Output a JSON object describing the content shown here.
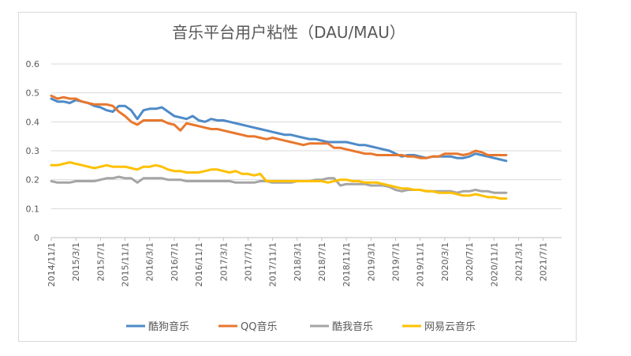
{
  "chart_data": {
    "type": "line",
    "title": "音乐平台用户粘性（DAU/MAU）",
    "xlabel": "",
    "ylabel": "",
    "ylim": [
      0,
      0.6
    ],
    "yticks": [
      "0",
      "0.1",
      "0.2",
      "0.3",
      "0.4",
      "0.5",
      "0.6"
    ],
    "x_tick_labels": [
      "2014/11/1",
      "2015/3/1",
      "2015/7/1",
      "2015/11/1",
      "2016/3/1",
      "2016/7/1",
      "2016/11/1",
      "2017/3/1",
      "2017/7/1",
      "2017/11/1",
      "2018/3/1",
      "2018/7/1",
      "2018/11/1",
      "2019/3/1",
      "2019/7/1",
      "2019/11/1",
      "2020/3/1",
      "2020/7/1",
      "2020/11/1",
      "2021/3/1",
      "2021/7/1"
    ],
    "x_months": 83,
    "series": [
      {
        "name": "酷狗音乐",
        "color": "#4e8ac8",
        "points": [
          [
            0,
            0.48
          ],
          [
            1,
            0.47
          ],
          [
            2,
            0.47
          ],
          [
            3,
            0.465
          ],
          [
            4,
            0.475
          ],
          [
            5,
            0.47
          ],
          [
            6,
            0.465
          ],
          [
            7,
            0.455
          ],
          [
            8,
            0.45
          ],
          [
            9,
            0.44
          ],
          [
            10,
            0.435
          ],
          [
            11,
            0.455
          ],
          [
            12,
            0.455
          ],
          [
            13,
            0.44
          ],
          [
            14,
            0.41
          ],
          [
            15,
            0.44
          ],
          [
            16,
            0.445
          ],
          [
            17,
            0.445
          ],
          [
            18,
            0.45
          ],
          [
            19,
            0.435
          ],
          [
            20,
            0.42
          ],
          [
            21,
            0.415
          ],
          [
            22,
            0.41
          ],
          [
            23,
            0.42
          ],
          [
            24,
            0.405
          ],
          [
            25,
            0.4
          ],
          [
            26,
            0.41
          ],
          [
            27,
            0.405
          ],
          [
            28,
            0.405
          ],
          [
            29,
            0.4
          ],
          [
            30,
            0.395
          ],
          [
            31,
            0.39
          ],
          [
            32,
            0.385
          ],
          [
            33,
            0.38
          ],
          [
            34,
            0.375
          ],
          [
            35,
            0.37
          ],
          [
            36,
            0.365
          ],
          [
            37,
            0.36
          ],
          [
            38,
            0.355
          ],
          [
            39,
            0.355
          ],
          [
            40,
            0.35
          ],
          [
            41,
            0.345
          ],
          [
            42,
            0.34
          ],
          [
            43,
            0.34
          ],
          [
            44,
            0.335
          ],
          [
            45,
            0.33
          ],
          [
            46,
            0.33
          ],
          [
            47,
            0.33
          ],
          [
            48,
            0.33
          ],
          [
            49,
            0.325
          ],
          [
            50,
            0.32
          ],
          [
            51,
            0.32
          ],
          [
            52,
            0.315
          ],
          [
            53,
            0.31
          ],
          [
            54,
            0.305
          ],
          [
            55,
            0.3
          ],
          [
            56,
            0.29
          ],
          [
            57,
            0.28
          ],
          [
            58,
            0.285
          ],
          [
            59,
            0.285
          ],
          [
            60,
            0.28
          ],
          [
            61,
            0.275
          ],
          [
            62,
            0.28
          ],
          [
            63,
            0.28
          ],
          [
            64,
            0.28
          ],
          [
            65,
            0.28
          ],
          [
            66,
            0.275
          ],
          [
            67,
            0.275
          ],
          [
            68,
            0.28
          ],
          [
            69,
            0.29
          ],
          [
            70,
            0.285
          ],
          [
            71,
            0.28
          ],
          [
            72,
            0.275
          ],
          [
            73,
            0.27
          ],
          [
            74,
            0.265
          ]
        ]
      },
      {
        "name": "QQ音乐",
        "color": "#e8772e",
        "points": [
          [
            0,
            0.49
          ],
          [
            1,
            0.48
          ],
          [
            2,
            0.485
          ],
          [
            3,
            0.48
          ],
          [
            4,
            0.48
          ],
          [
            5,
            0.47
          ],
          [
            6,
            0.465
          ],
          [
            7,
            0.46
          ],
          [
            8,
            0.46
          ],
          [
            9,
            0.46
          ],
          [
            10,
            0.455
          ],
          [
            11,
            0.435
          ],
          [
            12,
            0.42
          ],
          [
            13,
            0.4
          ],
          [
            14,
            0.39
          ],
          [
            15,
            0.405
          ],
          [
            16,
            0.405
          ],
          [
            17,
            0.405
          ],
          [
            18,
            0.405
          ],
          [
            19,
            0.395
          ],
          [
            20,
            0.39
          ],
          [
            21,
            0.37
          ],
          [
            22,
            0.395
          ],
          [
            23,
            0.39
          ],
          [
            24,
            0.385
          ],
          [
            25,
            0.38
          ],
          [
            26,
            0.375
          ],
          [
            27,
            0.375
          ],
          [
            28,
            0.37
          ],
          [
            29,
            0.365
          ],
          [
            30,
            0.36
          ],
          [
            31,
            0.355
          ],
          [
            32,
            0.35
          ],
          [
            33,
            0.35
          ],
          [
            34,
            0.345
          ],
          [
            35,
            0.34
          ],
          [
            36,
            0.345
          ],
          [
            37,
            0.34
          ],
          [
            38,
            0.335
          ],
          [
            39,
            0.33
          ],
          [
            40,
            0.325
          ],
          [
            41,
            0.32
          ],
          [
            42,
            0.325
          ],
          [
            43,
            0.325
          ],
          [
            44,
            0.325
          ],
          [
            45,
            0.325
          ],
          [
            46,
            0.31
          ],
          [
            47,
            0.31
          ],
          [
            48,
            0.305
          ],
          [
            49,
            0.3
          ],
          [
            50,
            0.295
          ],
          [
            51,
            0.29
          ],
          [
            52,
            0.29
          ],
          [
            53,
            0.285
          ],
          [
            54,
            0.285
          ],
          [
            55,
            0.285
          ],
          [
            56,
            0.285
          ],
          [
            57,
            0.285
          ],
          [
            58,
            0.28
          ],
          [
            59,
            0.28
          ],
          [
            60,
            0.275
          ],
          [
            61,
            0.275
          ],
          [
            62,
            0.28
          ],
          [
            63,
            0.28
          ],
          [
            64,
            0.29
          ],
          [
            65,
            0.29
          ],
          [
            66,
            0.29
          ],
          [
            67,
            0.285
          ],
          [
            68,
            0.29
          ],
          [
            69,
            0.3
          ],
          [
            70,
            0.295
          ],
          [
            71,
            0.285
          ],
          [
            72,
            0.285
          ],
          [
            73,
            0.285
          ],
          [
            74,
            0.285
          ]
        ]
      },
      {
        "name": "酷我音乐",
        "color": "#a5a5a5",
        "points": [
          [
            0,
            0.195
          ],
          [
            1,
            0.19
          ],
          [
            2,
            0.19
          ],
          [
            3,
            0.19
          ],
          [
            4,
            0.195
          ],
          [
            5,
            0.195
          ],
          [
            6,
            0.195
          ],
          [
            7,
            0.195
          ],
          [
            8,
            0.2
          ],
          [
            9,
            0.205
          ],
          [
            10,
            0.205
          ],
          [
            11,
            0.21
          ],
          [
            12,
            0.205
          ],
          [
            13,
            0.205
          ],
          [
            14,
            0.19
          ],
          [
            15,
            0.205
          ],
          [
            16,
            0.205
          ],
          [
            17,
            0.205
          ],
          [
            18,
            0.205
          ],
          [
            19,
            0.2
          ],
          [
            20,
            0.2
          ],
          [
            21,
            0.2
          ],
          [
            22,
            0.195
          ],
          [
            23,
            0.195
          ],
          [
            24,
            0.195
          ],
          [
            25,
            0.195
          ],
          [
            26,
            0.195
          ],
          [
            27,
            0.195
          ],
          [
            28,
            0.195
          ],
          [
            29,
            0.195
          ],
          [
            30,
            0.19
          ],
          [
            31,
            0.19
          ],
          [
            32,
            0.19
          ],
          [
            33,
            0.19
          ],
          [
            34,
            0.195
          ],
          [
            35,
            0.195
          ],
          [
            36,
            0.19
          ],
          [
            37,
            0.19
          ],
          [
            38,
            0.19
          ],
          [
            39,
            0.19
          ],
          [
            40,
            0.195
          ],
          [
            41,
            0.195
          ],
          [
            42,
            0.195
          ],
          [
            43,
            0.2
          ],
          [
            44,
            0.2
          ],
          [
            45,
            0.205
          ],
          [
            46,
            0.205
          ],
          [
            47,
            0.18
          ],
          [
            48,
            0.185
          ],
          [
            49,
            0.185
          ],
          [
            50,
            0.185
          ],
          [
            51,
            0.185
          ],
          [
            52,
            0.18
          ],
          [
            53,
            0.18
          ],
          [
            54,
            0.18
          ],
          [
            55,
            0.175
          ],
          [
            56,
            0.165
          ],
          [
            57,
            0.16
          ],
          [
            58,
            0.165
          ],
          [
            59,
            0.165
          ],
          [
            60,
            0.165
          ],
          [
            61,
            0.16
          ],
          [
            62,
            0.16
          ],
          [
            63,
            0.16
          ],
          [
            64,
            0.16
          ],
          [
            65,
            0.16
          ],
          [
            66,
            0.155
          ],
          [
            67,
            0.16
          ],
          [
            68,
            0.16
          ],
          [
            69,
            0.165
          ],
          [
            70,
            0.16
          ],
          [
            71,
            0.16
          ],
          [
            72,
            0.155
          ],
          [
            73,
            0.155
          ],
          [
            74,
            0.155
          ]
        ]
      },
      {
        "name": "网易云音乐",
        "color": "#ffc000",
        "points": [
          [
            0,
            0.25
          ],
          [
            1,
            0.25
          ],
          [
            2,
            0.255
          ],
          [
            3,
            0.26
          ],
          [
            4,
            0.255
          ],
          [
            5,
            0.25
          ],
          [
            6,
            0.245
          ],
          [
            7,
            0.24
          ],
          [
            8,
            0.245
          ],
          [
            9,
            0.25
          ],
          [
            10,
            0.245
          ],
          [
            11,
            0.245
          ],
          [
            12,
            0.245
          ],
          [
            13,
            0.24
          ],
          [
            14,
            0.235
          ],
          [
            15,
            0.245
          ],
          [
            16,
            0.245
          ],
          [
            17,
            0.25
          ],
          [
            18,
            0.245
          ],
          [
            19,
            0.235
          ],
          [
            20,
            0.23
          ],
          [
            21,
            0.23
          ],
          [
            22,
            0.225
          ],
          [
            23,
            0.225
          ],
          [
            24,
            0.225
          ],
          [
            25,
            0.23
          ],
          [
            26,
            0.235
          ],
          [
            27,
            0.235
          ],
          [
            28,
            0.23
          ],
          [
            29,
            0.225
          ],
          [
            30,
            0.23
          ],
          [
            31,
            0.22
          ],
          [
            32,
            0.22
          ],
          [
            33,
            0.215
          ],
          [
            34,
            0.22
          ],
          [
            35,
            0.195
          ],
          [
            36,
            0.195
          ],
          [
            37,
            0.195
          ],
          [
            38,
            0.195
          ],
          [
            39,
            0.195
          ],
          [
            40,
            0.195
          ],
          [
            41,
            0.195
          ],
          [
            42,
            0.195
          ],
          [
            43,
            0.195
          ],
          [
            44,
            0.195
          ],
          [
            45,
            0.19
          ],
          [
            46,
            0.195
          ],
          [
            47,
            0.2
          ],
          [
            48,
            0.2
          ],
          [
            49,
            0.195
          ],
          [
            50,
            0.195
          ],
          [
            51,
            0.19
          ],
          [
            52,
            0.19
          ],
          [
            53,
            0.19
          ],
          [
            54,
            0.185
          ],
          [
            55,
            0.18
          ],
          [
            56,
            0.175
          ],
          [
            57,
            0.17
          ],
          [
            58,
            0.17
          ],
          [
            59,
            0.165
          ],
          [
            60,
            0.165
          ],
          [
            61,
            0.16
          ],
          [
            62,
            0.16
          ],
          [
            63,
            0.155
          ],
          [
            64,
            0.155
          ],
          [
            65,
            0.155
          ],
          [
            66,
            0.15
          ],
          [
            67,
            0.145
          ],
          [
            68,
            0.145
          ],
          [
            69,
            0.15
          ],
          [
            70,
            0.145
          ],
          [
            71,
            0.14
          ],
          [
            72,
            0.14
          ],
          [
            73,
            0.135
          ],
          [
            74,
            0.135
          ]
        ]
      }
    ],
    "legend": [
      "酷狗音乐",
      "QQ音乐",
      "酷我音乐",
      "网易云音乐"
    ],
    "legend_position": "bottom",
    "grid": true
  }
}
